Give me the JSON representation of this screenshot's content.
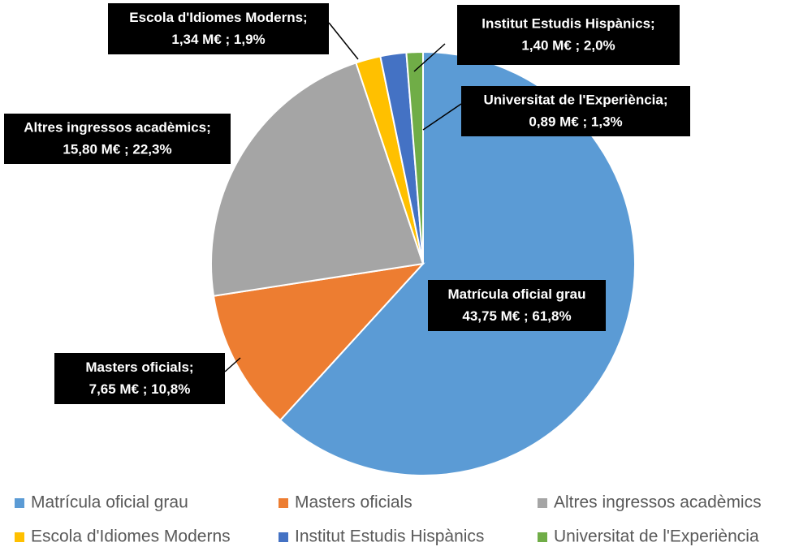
{
  "chart_data": {
    "type": "pie",
    "categories": [
      "Matrícula oficial grau",
      "Masters oficials",
      "Altres ingressos acadèmics",
      "Escola d'Idiomes Moderns",
      "Institut Estudis Hispànics",
      "Universitat de l'Experiència"
    ],
    "values": [
      43.75,
      7.65,
      15.8,
      1.34,
      1.4,
      0.89
    ],
    "label_names": [
      "Matrícula oficial grau",
      "Masters oficials;",
      "Altres ingressos acadèmics;",
      "Escola d'Idiomes Moderns;",
      "Institut Estudis Hispànics;",
      "Universitat de l'Experiència;"
    ],
    "value_labels": [
      "43,75 M€ ; 61,8%",
      "7,65 M€ ; 10,8%",
      "15,80 M€ ; 22,3%",
      "1,34 M€ ; 1,9%",
      "1,40 M€ ; 2,0%",
      "0,89 M€ ; 1,3%"
    ],
    "colors": [
      "#5b9bd5",
      "#ed7d31",
      "#a5a5a5",
      "#ffc000",
      "#4472c4",
      "#70ad47"
    ],
    "legend": "bottom"
  }
}
